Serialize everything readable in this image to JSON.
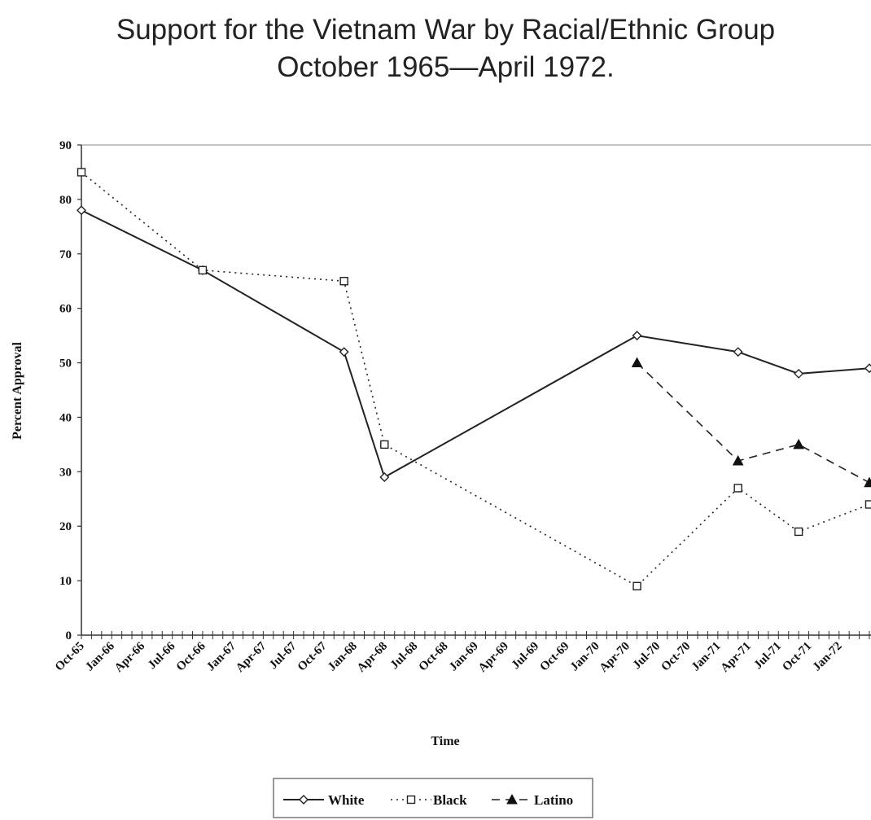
{
  "chart_data": {
    "type": "line",
    "title": "Support for the Vietnam War by Racial/Ethnic Group",
    "subtitle": "October 1965—April 1972.",
    "xlabel": "Time",
    "ylabel": "Percent Approval",
    "ylim": [
      0,
      90
    ],
    "yticks": [
      0,
      10,
      20,
      30,
      40,
      50,
      60,
      70,
      80,
      90
    ],
    "xlim": [
      "1965-10",
      "1972-04"
    ],
    "xtick_labels": [
      "Oct-65",
      "Jan-66",
      "Apr-66",
      "Jul-66",
      "Oct-66",
      "Jan-67",
      "Apr-67",
      "Jul-67",
      "Oct-67",
      "Jan-68",
      "Apr-68",
      "Jul-68",
      "Oct-68",
      "Jan-69",
      "Apr-69",
      "Jul-69",
      "Oct-69",
      "Jan-70",
      "Apr-70",
      "Jul-70",
      "Oct-70",
      "Jan-71",
      "Apr-71",
      "Jul-71",
      "Oct-71",
      "Jan-72"
    ],
    "legend_position": "bottom",
    "series": [
      {
        "name": "White",
        "style": "solid",
        "marker": "diamond",
        "points": [
          {
            "x": "1965-10",
            "y": 78
          },
          {
            "x": "1966-10",
            "y": 67
          },
          {
            "x": "1967-12",
            "y": 52
          },
          {
            "x": "1968-04",
            "y": 29
          },
          {
            "x": "1970-05",
            "y": 55
          },
          {
            "x": "1971-03",
            "y": 52
          },
          {
            "x": "1971-09",
            "y": 48
          },
          {
            "x": "1972-04",
            "y": 49
          }
        ]
      },
      {
        "name": "Black",
        "style": "dotted",
        "marker": "square",
        "points": [
          {
            "x": "1965-10",
            "y": 85
          },
          {
            "x": "1966-10",
            "y": 67
          },
          {
            "x": "1967-12",
            "y": 65
          },
          {
            "x": "1968-04",
            "y": 35
          },
          {
            "x": "1970-05",
            "y": 9
          },
          {
            "x": "1971-03",
            "y": 27
          },
          {
            "x": "1971-09",
            "y": 19
          },
          {
            "x": "1972-04",
            "y": 24
          }
        ]
      },
      {
        "name": "Latino",
        "style": "dashed",
        "marker": "triangle",
        "points": [
          {
            "x": "1970-05",
            "y": 50
          },
          {
            "x": "1971-03",
            "y": 32
          },
          {
            "x": "1971-09",
            "y": 35
          },
          {
            "x": "1972-04",
            "y": 28
          }
        ]
      }
    ]
  }
}
